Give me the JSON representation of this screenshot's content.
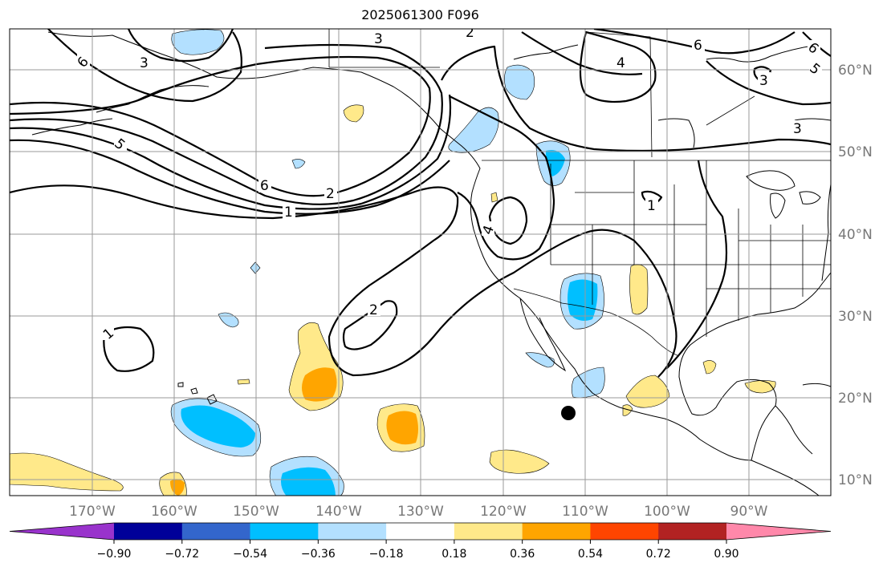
{
  "title": "2025061300 F096",
  "lon_labels": [
    "170°W",
    "160°W",
    "150°W",
    "140°W",
    "130°W",
    "120°W",
    "110°W",
    "100°W",
    "90°W"
  ],
  "lat_labels": [
    "60°N",
    "50°N",
    "40°N",
    "30°N",
    "20°N",
    "10°N"
  ],
  "contour_labels": [
    "6",
    "5",
    "6",
    "1",
    "2",
    "3",
    "2",
    "4",
    "6",
    "3",
    "3",
    "4",
    "2",
    "1",
    "3",
    "1",
    "6",
    "5"
  ],
  "colorbar": {
    "ticks": [
      "−0.90",
      "−0.72",
      "−0.54",
      "−0.36",
      "−0.18",
      "0.18",
      "0.36",
      "0.54",
      "0.72",
      "0.90"
    ],
    "colors": [
      "#9933cc",
      "#000099",
      "#3366cc",
      "#00bfff",
      "#b3e0ff",
      "#ffffff",
      "#ffe98a",
      "#ffa500",
      "#ff4500",
      "#b22222",
      "#ff88aa"
    ]
  },
  "colors": {
    "light_blue": "#b3e0ff",
    "blue": "#00bfff",
    "yellow": "#ffe98a",
    "orange": "#ffa500"
  }
}
